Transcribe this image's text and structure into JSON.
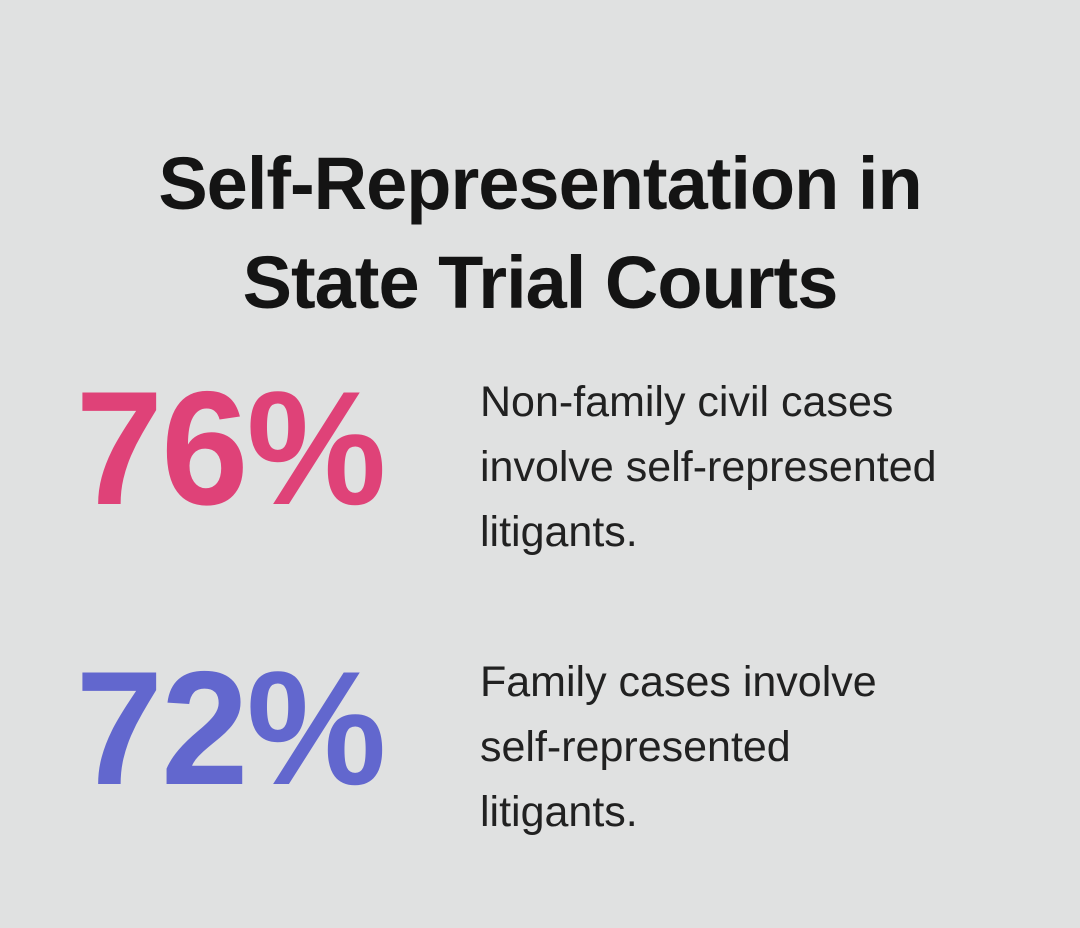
{
  "colors": {
    "background": "#E0E1E1",
    "title_text": "#141414",
    "body_text": "#212121",
    "stat_pink": "#DF4278",
    "stat_purple": "#6267CE"
  },
  "title": {
    "line1": "Self-Representation in",
    "line2": "State Trial Courts"
  },
  "stats": [
    {
      "value": "76%",
      "color": "#DF4278",
      "description": "Non-family civil cases involve self-represented litigants."
    },
    {
      "value": "72%",
      "color": "#6267CE",
      "description": "Family cases involve self-represented litigants."
    }
  ],
  "chart_data": {
    "type": "table",
    "title": "Self-Representation in State Trial Courts",
    "categories": [
      "Non-family civil cases",
      "Family cases"
    ],
    "values": [
      76,
      72
    ],
    "unit": "%",
    "annotations": [
      "76% — Non-family civil cases involve self-represented litigants.",
      "72% — Family cases involve self-represented litigants."
    ],
    "layout_hints": {
      "style": "infographic big-number callouts",
      "value_colors": [
        "#DF4278",
        "#6267CE"
      ],
      "grid": false,
      "legend": false
    }
  }
}
